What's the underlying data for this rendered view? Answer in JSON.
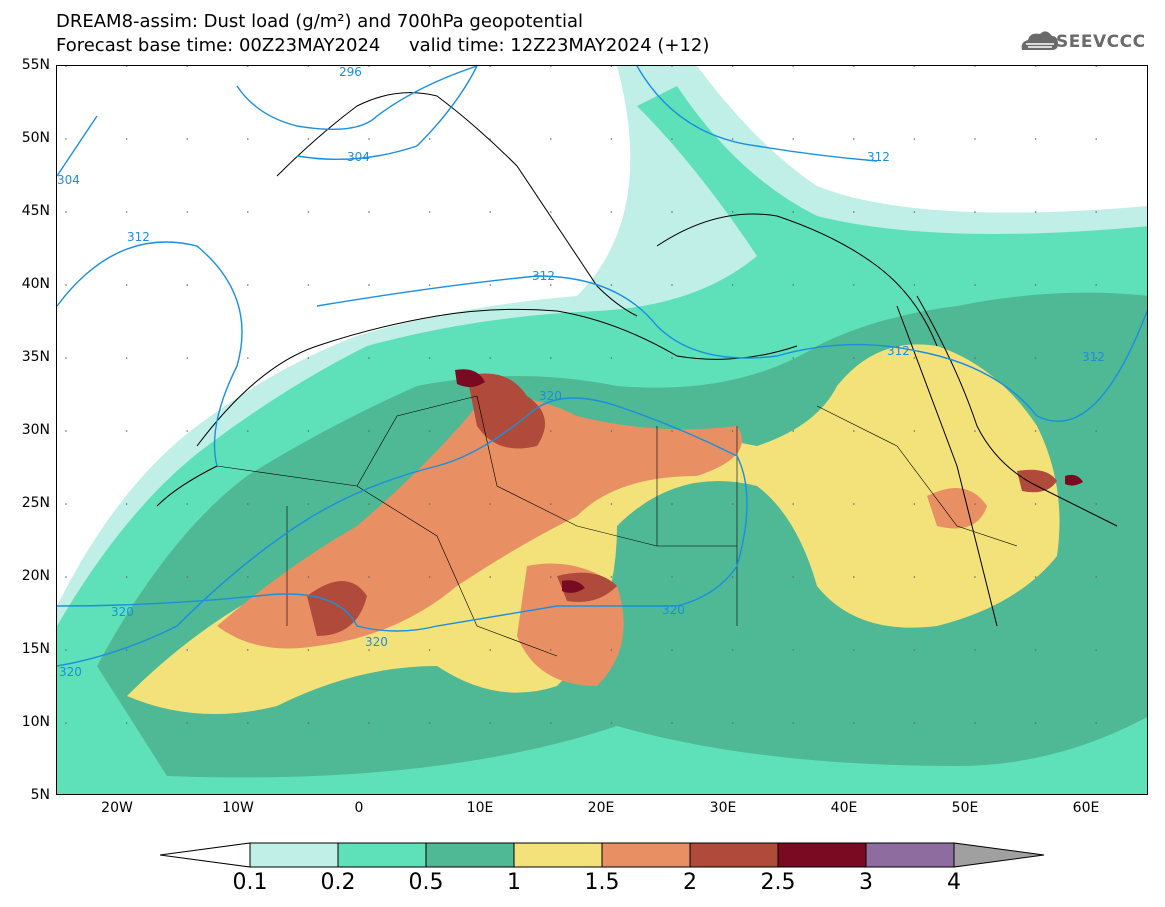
{
  "header": {
    "title_line1": "DREAM8-assim: Dust load (g/m²) and 700hPa geopotential",
    "title_line2": "Forecast base time: 00Z23MAY2024     valid time: 12Z23MAY2024 (+12)",
    "logo_text": "SEEVCCC",
    "logo_icon": "cloud-logo-icon"
  },
  "map": {
    "lat_labels": [
      "55N",
      "50N",
      "45N",
      "40N",
      "35N",
      "30N",
      "25N",
      "20N",
      "15N",
      "10N",
      "5N"
    ],
    "lon_labels": [
      "20W",
      "10W",
      "0",
      "10E",
      "20E",
      "30E",
      "40E",
      "50E",
      "60E"
    ],
    "contour_labels": [
      "296",
      "304",
      "312",
      "304",
      "312",
      "312",
      "312",
      "312",
      "320",
      "320",
      "320",
      "320",
      "320"
    ],
    "contour_color": "#1a8fe0",
    "border_color": "#000000"
  },
  "legend": {
    "labels": [
      "0.1",
      "0.2",
      "0.5",
      "1",
      "1.5",
      "2",
      "2.5",
      "3",
      "4"
    ],
    "colors": [
      "#ffffff",
      "#bfefe6",
      "#5ee0b9",
      "#4fb894",
      "#f3e27a",
      "#e89064",
      "#b04a3a",
      "#7a0a22",
      "#8e6ca0",
      "#a0a0a0"
    ]
  }
}
